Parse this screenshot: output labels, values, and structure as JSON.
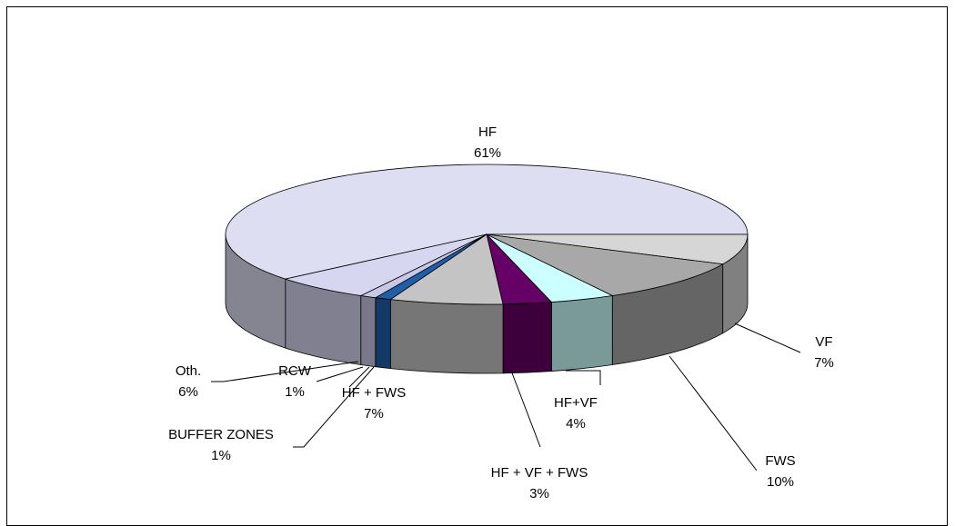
{
  "chart_data": {
    "type": "pie3d",
    "categories": [
      "HF",
      "VF",
      "FWS",
      "HF+VF",
      "HF + VF + FWS",
      "HF + FWS",
      "BUFFER ZONES",
      "RCW",
      "Oth."
    ],
    "values": [
      61,
      7,
      10,
      4,
      3,
      7,
      1,
      1,
      6
    ],
    "value_labels": [
      "61%",
      "7%",
      "10%",
      "4%",
      "3%",
      "7%",
      "1%",
      "1%",
      "6%"
    ],
    "colors": [
      "#dedef2",
      "#d6d6d6",
      "#a8a8a8",
      "#ccffff",
      "#660066",
      "#c4c4c4",
      "#1f5faa",
      "#c8c8e6",
      "#d6d6f0"
    ]
  }
}
